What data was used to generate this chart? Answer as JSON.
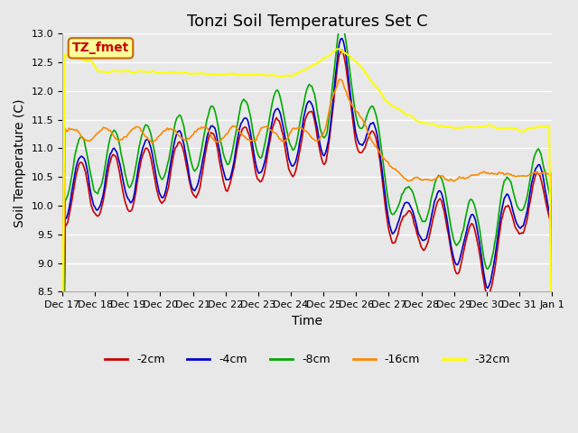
{
  "title": "Tonzi Soil Temperatures Set C",
  "xlabel": "Time",
  "ylabel": "Soil Temperature (C)",
  "ylim": [
    8.5,
    13.0
  ],
  "yticks": [
    8.5,
    9.0,
    9.5,
    10.0,
    10.5,
    11.0,
    11.5,
    12.0,
    12.5,
    13.0
  ],
  "series_colors": {
    "-2cm": "#cc0000",
    "-4cm": "#0000cc",
    "-8cm": "#00aa00",
    "-16cm": "#ff8800",
    "-32cm": "#ffff00"
  },
  "legend_entries": [
    "-2cm",
    "-4cm",
    "-8cm",
    "-16cm",
    "-32cm"
  ],
  "xtick_labels": [
    "Dec 17",
    "Dec 18",
    "Dec 19",
    "Dec 20",
    "Dec 21",
    "Dec 22",
    "Dec 23",
    "Dec 24",
    "Dec 25",
    "Dec 26",
    "Dec 27",
    "Dec 28",
    "Dec 29",
    "Dec 30",
    "Dec 31",
    "Jan 1"
  ],
  "annotation_text": "TZ_fmet",
  "annotation_color": "#cc0000",
  "annotation_bg": "#ffff99",
  "annotation_border": "#cc6600",
  "bg_color": "#e8e8e8",
  "grid_color": "#ffffff",
  "title_fontsize": 13,
  "axis_label_fontsize": 10,
  "tick_fontsize": 8,
  "legend_fontsize": 9
}
